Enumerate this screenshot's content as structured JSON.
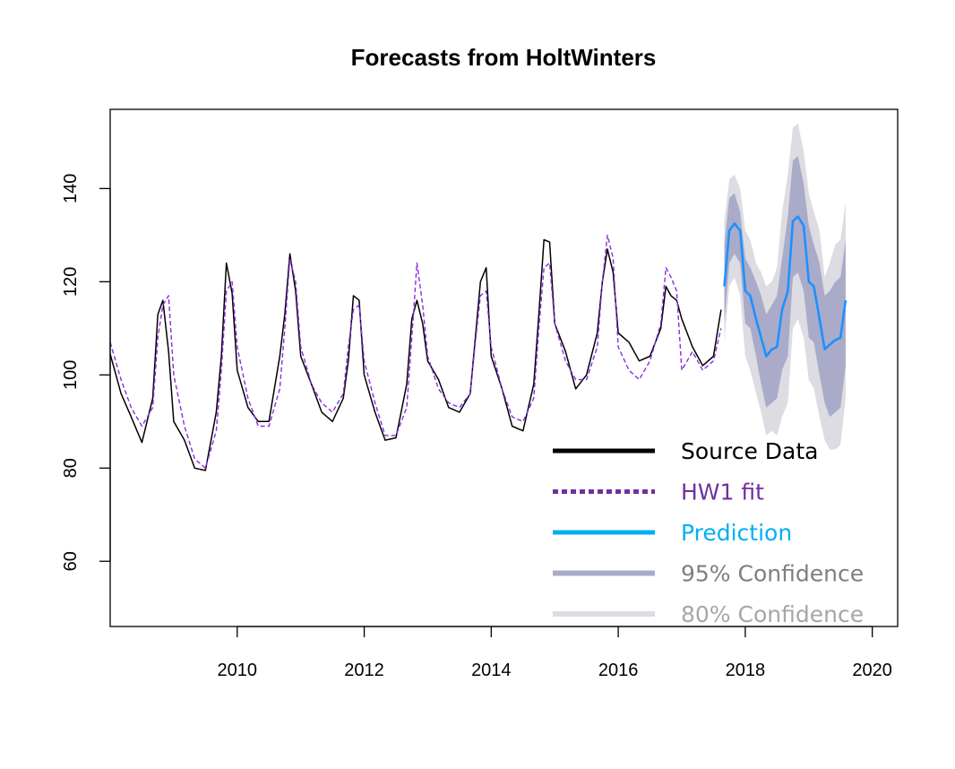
{
  "chart_data": {
    "type": "line",
    "title": "Forecasts from HoltWinters",
    "xlabel": "",
    "ylabel": "",
    "xlim": [
      2008.0,
      2020.4
    ],
    "ylim": [
      46,
      157
    ],
    "x_ticks": [
      2010,
      2012,
      2014,
      2016,
      2018,
      2020
    ],
    "x_tick_labels": [
      "2010",
      "2012",
      "2014",
      "2016",
      "2018",
      "2020"
    ],
    "y_ticks": [
      60,
      80,
      100,
      120,
      140
    ],
    "y_tick_labels": [
      "60",
      "80",
      "100",
      "120",
      "140"
    ],
    "series": [
      {
        "name": "Source Data",
        "color": "#000000",
        "style": "solid",
        "x": [
          2008.0,
          2008.17,
          2008.33,
          2008.5,
          2008.67,
          2008.75,
          2008.83,
          2008.92,
          2009.0,
          2009.17,
          2009.33,
          2009.5,
          2009.67,
          2009.75,
          2009.83,
          2009.92,
          2010.0,
          2010.17,
          2010.33,
          2010.5,
          2010.67,
          2010.75,
          2010.83,
          2010.92,
          2011.0,
          2011.17,
          2011.33,
          2011.5,
          2011.67,
          2011.75,
          2011.83,
          2011.92,
          2012.0,
          2012.17,
          2012.33,
          2012.5,
          2012.67,
          2012.75,
          2012.83,
          2012.92,
          2013.0,
          2013.17,
          2013.33,
          2013.5,
          2013.67,
          2013.75,
          2013.83,
          2013.92,
          2014.0,
          2014.17,
          2014.33,
          2014.5,
          2014.67,
          2014.75,
          2014.83,
          2014.92,
          2015.0,
          2015.17,
          2015.33,
          2015.5,
          2015.67,
          2015.75,
          2015.83,
          2015.92,
          2016.0,
          2016.17,
          2016.33,
          2016.5,
          2016.67,
          2016.75,
          2016.83,
          2016.92,
          2017.0,
          2017.17,
          2017.33,
          2017.5,
          2017.62
        ],
        "values": [
          104.5,
          96.0,
          91.0,
          85.5,
          95.0,
          113.0,
          116.0,
          105.0,
          90.0,
          86.0,
          80.0,
          79.5,
          92.0,
          104.0,
          124.0,
          117.5,
          101.0,
          93.0,
          90.0,
          90.0,
          104.0,
          113.0,
          126.0,
          118.0,
          104.0,
          98.0,
          92.0,
          90.0,
          95.0,
          103.0,
          117.0,
          116.0,
          100.0,
          92.0,
          86.0,
          86.5,
          98.0,
          112.0,
          116.0,
          111.0,
          103.0,
          99.0,
          93.0,
          92.0,
          96.0,
          108.0,
          120.0,
          123.0,
          104.0,
          97.0,
          89.0,
          88.0,
          98.0,
          113.0,
          129.0,
          128.5,
          111.0,
          105.0,
          97.0,
          100.0,
          109.0,
          120.0,
          127.0,
          122.0,
          109.0,
          107.0,
          103.0,
          104.0,
          110.0,
          119.0,
          117.0,
          116.0,
          112.0,
          106.0,
          102.0,
          104.0,
          114.0
        ]
      },
      {
        "name": "HW1 fit",
        "color": "#8a2be2",
        "style": "dashed",
        "x": [
          2008.0,
          2008.17,
          2008.33,
          2008.5,
          2008.67,
          2008.75,
          2008.83,
          2008.92,
          2009.0,
          2009.17,
          2009.33,
          2009.5,
          2009.67,
          2009.75,
          2009.83,
          2009.92,
          2010.0,
          2010.17,
          2010.33,
          2010.5,
          2010.67,
          2010.75,
          2010.83,
          2010.92,
          2011.0,
          2011.17,
          2011.33,
          2011.5,
          2011.67,
          2011.75,
          2011.83,
          2011.92,
          2012.0,
          2012.17,
          2012.33,
          2012.5,
          2012.67,
          2012.75,
          2012.83,
          2012.92,
          2013.0,
          2013.17,
          2013.33,
          2013.5,
          2013.67,
          2013.75,
          2013.83,
          2013.92,
          2014.0,
          2014.17,
          2014.33,
          2014.5,
          2014.67,
          2014.75,
          2014.83,
          2014.92,
          2015.0,
          2015.17,
          2015.33,
          2015.5,
          2015.67,
          2015.75,
          2015.83,
          2015.92,
          2016.0,
          2016.17,
          2016.33,
          2016.5,
          2016.67,
          2016.75,
          2016.83,
          2016.92,
          2017.0,
          2017.17,
          2017.33,
          2017.5,
          2017.62
        ],
        "values": [
          107.0,
          99.0,
          93.0,
          89.0,
          93.0,
          108.0,
          115.0,
          117.0,
          100.0,
          89.0,
          82.0,
          80.0,
          88.0,
          101.0,
          118.0,
          120.0,
          106.0,
          95.0,
          89.0,
          89.0,
          97.0,
          110.0,
          125.0,
          120.0,
          106.0,
          98.0,
          94.0,
          92.0,
          96.0,
          106.0,
          114.0,
          115.0,
          103.0,
          94.0,
          87.0,
          87.0,
          93.0,
          108.0,
          124.0,
          115.0,
          104.0,
          97.0,
          94.0,
          93.0,
          96.0,
          107.0,
          117.0,
          118.0,
          106.0,
          97.0,
          91.0,
          90.0,
          95.0,
          110.0,
          123.0,
          124.0,
          111.0,
          103.0,
          99.0,
          99.0,
          106.0,
          120.0,
          130.0,
          125.0,
          106.0,
          101.0,
          99.0,
          103.0,
          111.0,
          123.0,
          121.0,
          118.0,
          101.0,
          105.0,
          101.0,
          103.0,
          110.0
        ]
      },
      {
        "name": "Prediction",
        "color": "#1e90ff",
        "style": "solid",
        "x": [
          2017.67,
          2017.75,
          2017.83,
          2017.92,
          2018.0,
          2018.08,
          2018.17,
          2018.25,
          2018.33,
          2018.42,
          2018.5,
          2018.58,
          2018.67,
          2018.75,
          2018.83,
          2018.92,
          2019.0,
          2019.08,
          2019.17,
          2019.25,
          2019.33,
          2019.42,
          2019.5,
          2019.58
        ],
        "values": [
          119.0,
          131.0,
          132.5,
          131.0,
          118.0,
          117.0,
          112.0,
          108.0,
          104.0,
          105.5,
          106.0,
          114.0,
          118.0,
          133.0,
          134.0,
          132.0,
          120.0,
          119.0,
          112.0,
          105.5,
          106.5,
          107.5,
          108.0,
          116.0
        ]
      }
    ],
    "bands": [
      {
        "name": "80% Confidence",
        "color": "#dcdce2",
        "x": [
          2017.67,
          2017.75,
          2017.83,
          2017.92,
          2018.0,
          2018.08,
          2018.17,
          2018.25,
          2018.33,
          2018.42,
          2018.5,
          2018.58,
          2018.67,
          2018.75,
          2018.83,
          2018.92,
          2019.0,
          2019.08,
          2019.17,
          2019.25,
          2019.33,
          2019.42,
          2019.5,
          2019.58
        ],
        "upper": [
          133.0,
          142.0,
          143.0,
          140.0,
          131.0,
          129.0,
          124.0,
          122.0,
          119.0,
          120.0,
          123.0,
          135.0,
          143.0,
          153.0,
          154.0,
          148.0,
          139.0,
          135.0,
          131.0,
          121.0,
          124.0,
          128.0,
          129.0,
          137.0
        ],
        "lower": [
          107.0,
          119.0,
          121.0,
          117.0,
          104.0,
          101.0,
          96.0,
          92.0,
          87.0,
          88.0,
          87.0,
          91.0,
          94.0,
          110.0,
          112.0,
          108.0,
          99.0,
          97.0,
          91.0,
          86.0,
          84.0,
          84.0,
          85.0,
          95.0
        ]
      },
      {
        "name": "95% Confidence",
        "color": "#a9abc9",
        "x": [
          2017.67,
          2017.75,
          2017.83,
          2017.92,
          2018.0,
          2018.08,
          2018.17,
          2018.25,
          2018.33,
          2018.42,
          2018.5,
          2018.58,
          2018.67,
          2018.75,
          2018.83,
          2018.92,
          2019.0,
          2019.08,
          2019.17,
          2019.25,
          2019.33,
          2019.42,
          2019.5,
          2019.58
        ],
        "upper": [
          128.0,
          138.0,
          139.0,
          135.0,
          125.0,
          123.0,
          120.0,
          117.0,
          113.0,
          115.0,
          117.0,
          125.0,
          134.0,
          146.0,
          147.0,
          141.0,
          132.0,
          128.0,
          124.0,
          117.0,
          118.0,
          120.0,
          121.0,
          129.0
        ],
        "lower": [
          111.0,
          124.0,
          126.0,
          124.0,
          111.0,
          110.0,
          104.0,
          98.0,
          93.0,
          94.0,
          95.0,
          101.0,
          104.0,
          121.0,
          122.0,
          118.0,
          108.0,
          107.0,
          100.0,
          94.0,
          91.0,
          92.0,
          93.0,
          102.0
        ]
      }
    ],
    "legend": {
      "position": "bottom-right",
      "entries": [
        {
          "label": "Source Data",
          "color": "#000000",
          "text_color": "#000000",
          "style": "solid"
        },
        {
          "label": "HW1 fit",
          "color": "#7030a0",
          "text_color": "#7030a0",
          "style": "dotted"
        },
        {
          "label": "Prediction",
          "color": "#00b0f0",
          "text_color": "#00b0f0",
          "style": "solid"
        },
        {
          "label": "95% Confidence",
          "color": "#a9abc9",
          "text_color": "#7f7f7f",
          "style": "solid"
        },
        {
          "label": "80% Confidence",
          "color": "#dcdce2",
          "text_color": "#a6a6a6",
          "style": "solid"
        }
      ]
    }
  }
}
